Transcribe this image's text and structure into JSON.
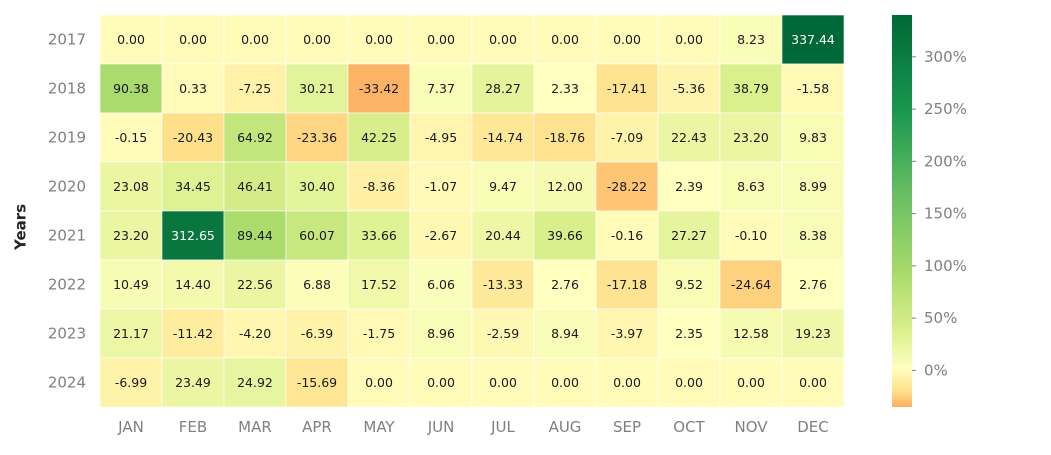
{
  "chart_data": {
    "type": "heatmap",
    "ylabel": "Years",
    "xlabel": "",
    "title": "",
    "x_categories": [
      "JAN",
      "FEB",
      "MAR",
      "APR",
      "MAY",
      "JUN",
      "JUL",
      "AUG",
      "SEP",
      "OCT",
      "NOV",
      "DEC"
    ],
    "y_categories": [
      "2017",
      "2018",
      "2019",
      "2020",
      "2021",
      "2022",
      "2023",
      "2024"
    ],
    "values": [
      [
        0.0,
        0.0,
        0.0,
        0.0,
        0.0,
        0.0,
        0.0,
        0.0,
        0.0,
        0.0,
        8.23,
        337.44
      ],
      [
        90.38,
        0.33,
        -7.25,
        30.21,
        -33.42,
        7.37,
        28.27,
        2.33,
        -17.41,
        -5.36,
        38.79,
        -1.58
      ],
      [
        -0.15,
        -20.43,
        64.92,
        -23.36,
        42.25,
        -4.95,
        -14.74,
        -18.76,
        -7.09,
        22.43,
        23.2,
        9.83
      ],
      [
        23.08,
        34.45,
        46.41,
        30.4,
        -8.36,
        -1.07,
        9.47,
        12.0,
        -28.22,
        2.39,
        8.63,
        8.99
      ],
      [
        23.2,
        312.65,
        89.44,
        60.07,
        33.66,
        -2.67,
        20.44,
        39.66,
        -0.16,
        27.27,
        -0.1,
        8.38
      ],
      [
        10.49,
        14.4,
        22.56,
        6.88,
        17.52,
        6.06,
        -13.33,
        2.76,
        -17.18,
        9.52,
        -24.64,
        2.76
      ],
      [
        21.17,
        -11.42,
        -4.2,
        -6.39,
        -1.75,
        8.96,
        -2.59,
        8.94,
        -3.97,
        2.35,
        12.58,
        19.23
      ],
      [
        -6.99,
        23.49,
        24.92,
        -15.69,
        0.0,
        0.0,
        0.0,
        0.0,
        0.0,
        0.0,
        0.0,
        0.0
      ]
    ],
    "value_range": [
      -35,
      340
    ],
    "colormap": "RdYlGn",
    "colorbar_ticks": [
      {
        "value": 0,
        "label": "0%"
      },
      {
        "value": 50,
        "label": "50%"
      },
      {
        "value": 100,
        "label": "100%"
      },
      {
        "value": 150,
        "label": "150%"
      },
      {
        "value": 200,
        "label": "200%"
      },
      {
        "value": 250,
        "label": "250%"
      },
      {
        "value": 300,
        "label": "300%"
      }
    ],
    "grid": false,
    "legend": "colorbar-right"
  }
}
